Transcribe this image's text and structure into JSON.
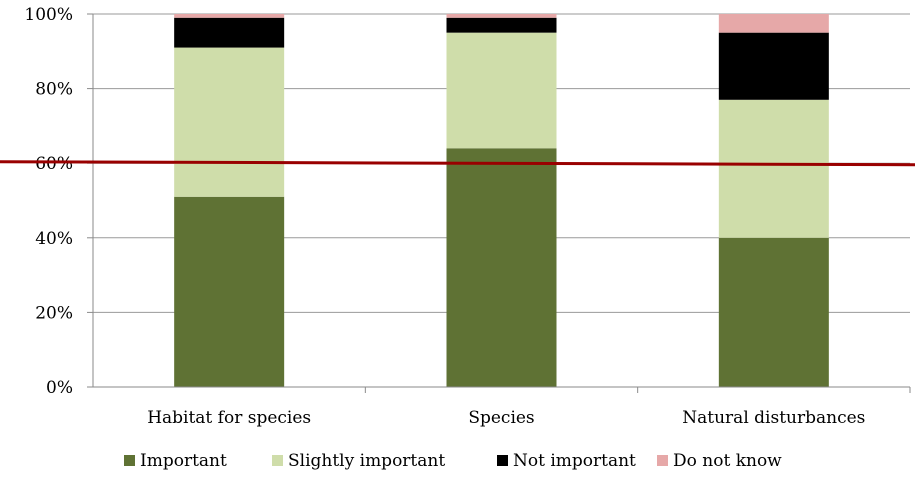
{
  "chart_data": {
    "type": "bar",
    "stacked": true,
    "categories": [
      "Habitat for species",
      "Species",
      "Natural disturbances"
    ],
    "series": [
      {
        "name": "Important",
        "color": "#5f7234",
        "values": [
          51,
          64,
          40
        ]
      },
      {
        "name": "Slightly important",
        "color": "#cfddaa",
        "values": [
          40,
          31,
          37
        ]
      },
      {
        "name": "Not important",
        "color": "#000000",
        "values": [
          8,
          4,
          18
        ]
      },
      {
        "name": "Do not know",
        "color": "#e6a8a8",
        "values": [
          1,
          1,
          5
        ]
      }
    ],
    "ylim": [
      0,
      100
    ],
    "yticks": [
      "0%",
      "20%",
      "40%",
      "60%",
      "80%",
      "100%"
    ],
    "reference_line": {
      "value": 60,
      "color": "#990000"
    },
    "grid": true,
    "legend_position": "bottom"
  }
}
